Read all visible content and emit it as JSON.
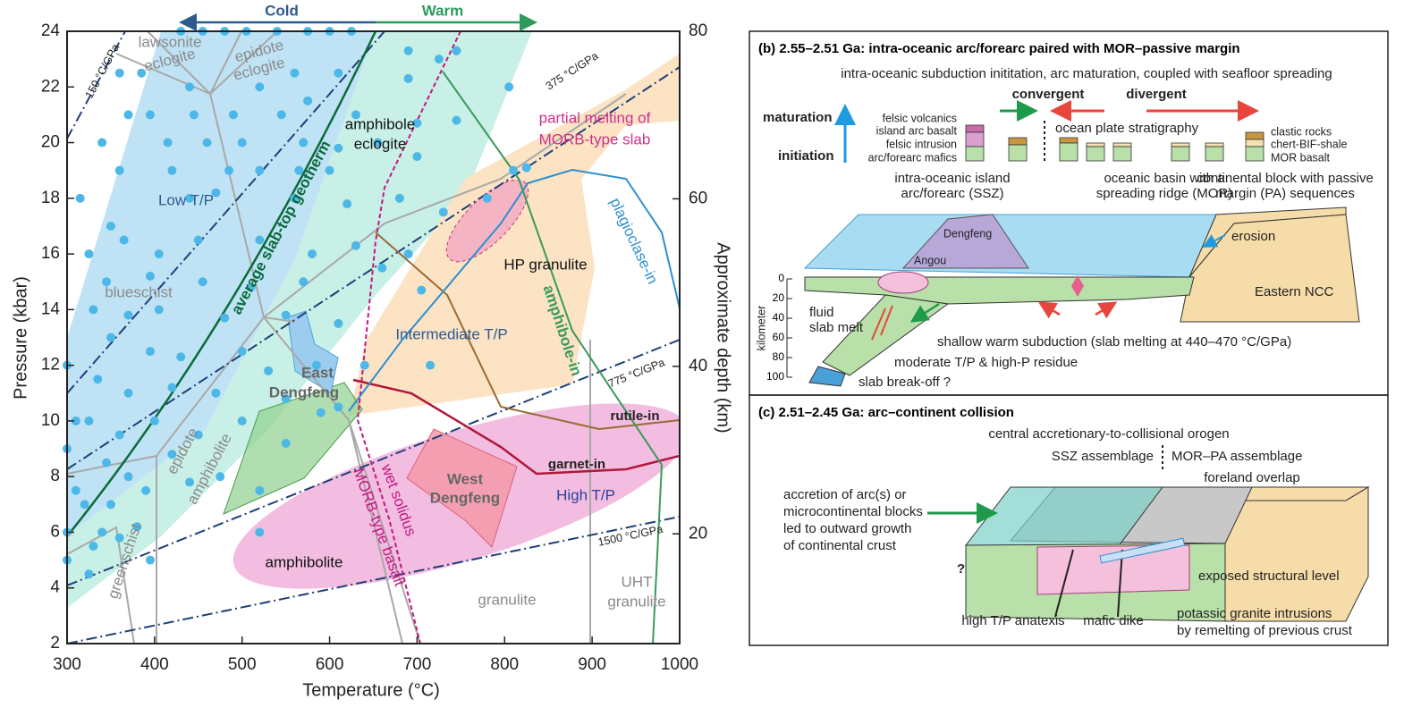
{
  "chart_data": {
    "type": "scatter",
    "x_label": "Temperature (°C)",
    "y_label": "Pressure (kbar)",
    "y2_label": "Approximate depth (km)",
    "xlim": [
      300,
      1000
    ],
    "xticks": [
      300,
      400,
      500,
      600,
      700,
      800,
      900,
      1000
    ],
    "ylim": [
      2,
      24
    ],
    "yticks": [
      2,
      4,
      6,
      8,
      10,
      12,
      14,
      16,
      18,
      20,
      22,
      24
    ],
    "y2lim": [
      6.9,
      80
    ],
    "y2ticks": [
      20,
      40,
      60,
      80
    ],
    "grid": false,
    "x": [
      430,
      455,
      480,
      505,
      540,
      575,
      600,
      625,
      360,
      385,
      440,
      520,
      560,
      610,
      690,
      725,
      745,
      805,
      690,
      370,
      395,
      445,
      490,
      545,
      575,
      630,
      700,
      340,
      415,
      460,
      500,
      570,
      610,
      655,
      745,
      360,
      420,
      485,
      520,
      565,
      600,
      700,
      810,
      825,
      315,
      350,
      440,
      470,
      560,
      620,
      680,
      730,
      780,
      325,
      365,
      405,
      450,
      520,
      580,
      630,
      690,
      345,
      395,
      455,
      510,
      570,
      660,
      705,
      330,
      370,
      405,
      480,
      550,
      610,
      350,
      395,
      430,
      500,
      530,
      585,
      640,
      715,
      300,
      335,
      370,
      420,
      470,
      550,
      610,
      310,
      325,
      360,
      400,
      450,
      500,
      590,
      300,
      345,
      370,
      420,
      475,
      550,
      310,
      320,
      350,
      390,
      440,
      520,
      300,
      340,
      360,
      330,
      380,
      395,
      300,
      325,
      520
    ],
    "series": [
      {
        "color": "#4db8e8",
        "values": [
          24,
          24,
          24,
          24,
          24,
          24,
          24,
          24,
          22.5,
          22.5,
          22,
          22,
          22.5,
          22.5,
          23.3,
          23,
          23.3,
          22,
          22.3,
          21,
          21,
          21,
          21,
          21,
          21.5,
          21,
          20.7,
          20,
          20,
          20,
          20,
          20,
          19.8,
          20,
          20.8,
          19,
          19,
          19,
          19,
          19,
          19,
          19.5,
          19,
          19.1,
          18,
          17,
          18,
          18.2,
          18,
          17.8,
          18,
          17.5,
          18,
          16,
          16.5,
          16,
          16.5,
          16.5,
          16,
          16.3,
          16,
          15,
          15.2,
          15,
          14.8,
          15,
          15.5,
          14.7,
          14,
          13.8,
          14,
          13.7,
          13.8,
          13.5,
          13,
          12.5,
          12.3,
          12.5,
          11.8,
          12,
          12,
          12,
          12,
          11.5,
          11,
          11.2,
          11,
          10.8,
          10.5,
          10,
          10,
          9.5,
          10,
          9.5,
          10,
          10.3,
          9,
          8.5,
          8,
          8.8,
          8,
          9.2,
          7.5,
          7,
          7,
          7.5,
          7.8,
          7.5,
          6,
          6,
          5.8,
          5.5,
          6.2,
          5,
          5,
          4.5,
          6
        ]
      }
    ],
    "annotations": [
      "Cold",
      "Warm",
      "lawsonite",
      "eclogite",
      "epidote",
      "eclogite",
      "150 °C/GPa",
      "375 °C/GPa",
      "amphibole",
      "eclogite",
      "partial melting of",
      "MORB-type slab",
      "Low T/P",
      "average slab-top geotherm",
      "HP granulite",
      "plagioclase-in",
      "blueschist",
      "amphibole-in",
      "Intermediate T/P",
      "East",
      "Dengfeng",
      "775 °C/GPa",
      "rutile-in",
      "epidote",
      "amphibolite",
      "wet solidus",
      "MORB-type basalt",
      "West",
      "Dengfeng",
      "garnet-in",
      "High T/P",
      "1500 °C/GPa",
      "amphibolite",
      "greenschist",
      "granulite",
      "UHT",
      "granulite"
    ]
  },
  "panel_b": {
    "title": "(b) 2.55–2.51 Ga: intra-oceanic arc/forearc paired with MOR–passive margin",
    "subtitle": "intra-oceanic subduction inititation, arc maturation, coupled with seafloor spreading",
    "labels": [
      "convergent",
      "divergent",
      "maturation",
      "initiation",
      "felsic volcanics",
      "island arc basalt",
      "felsic intrusion",
      "arc/forearc mafics",
      "ocean plate stratigraphy",
      "clastic rocks",
      "chert-BIF-shale",
      "MOR basalt",
      "intra-oceanic island",
      "arc/forearc (SSZ)",
      "oceanic basin with a",
      "spreading ridge (MOR)",
      "continental block with passive",
      "margin (PA) sequences",
      "Dengfeng",
      "Angou",
      "erosion",
      "Eastern NCC",
      "kilometer",
      "fluid",
      "slab melt",
      "shallow warm subduction (slab melting at 440–470 °C/GPa)",
      "moderate T/P & high-P residue",
      "slab break-off ?"
    ],
    "depth_ticks": [
      0,
      20,
      40,
      60,
      80,
      100
    ]
  },
  "panel_c": {
    "title": "(c) 2.51–2.45 Ga: arc–continent collision",
    "labels": [
      "central accretionary-to-collisional orogen",
      "SSZ assemblage",
      "MOR–PA assemblage",
      "foreland overlap",
      "accretion of arc(s) or",
      "microcontinental blocks",
      "led to outward growth",
      "of continental crust",
      "?",
      "exposed structural level",
      "high T/P anatexis",
      "mafic dike",
      "potassic granite intrusions",
      "by remelting of previous crust"
    ]
  }
}
